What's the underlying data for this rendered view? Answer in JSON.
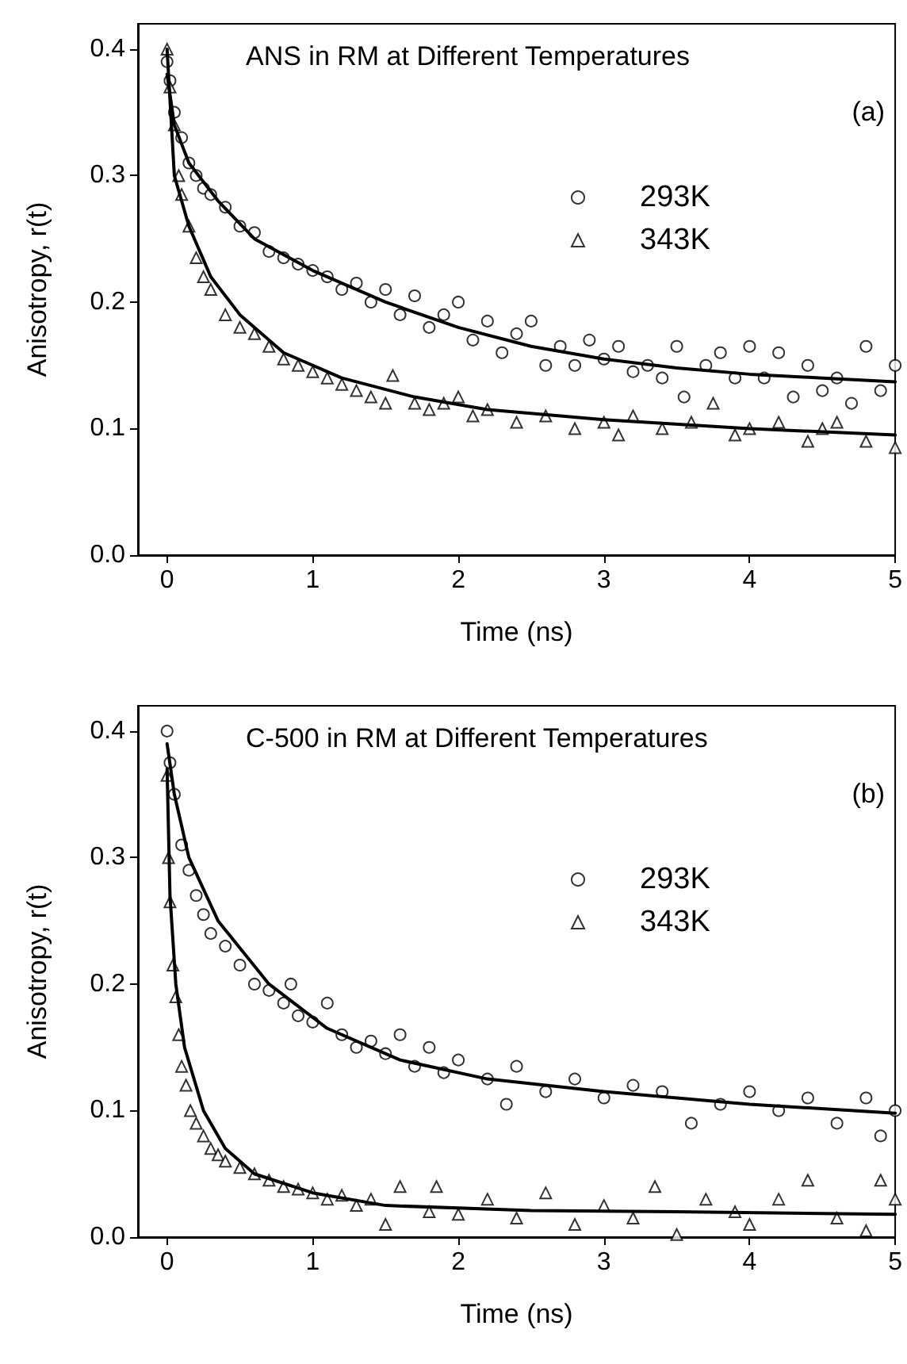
{
  "chart_data": [
    {
      "type": "scatter",
      "title": "ANS in RM at Different Temperatures",
      "xlabel": "Time (ns)",
      "ylabel": "Anisotropy, r(t)",
      "xlim": [
        -0.2,
        5
      ],
      "xticks": [
        0,
        1,
        2,
        3,
        4,
        5
      ],
      "ylim": [
        0,
        0.42
      ],
      "yticks": [
        {
          "value": 0,
          "label": "0.0"
        },
        0.1,
        0.2,
        0.3,
        0.4
      ],
      "grid": false,
      "legend": "top right",
      "annotations": [
        "(a)"
      ],
      "series": [
        {
          "name": "293K",
          "type": "scatter",
          "marker": "circle",
          "color": "#000000",
          "x": [
            0,
            0.02,
            0.05,
            0.1,
            0.15,
            0.2,
            0.25,
            0.3,
            0.4,
            0.5,
            0.6,
            0.7,
            0.8,
            0.9,
            1.0,
            1.1,
            1.2,
            1.3,
            1.4,
            1.5,
            1.6,
            1.7,
            1.8,
            1.9,
            2.0,
            2.1,
            2.2,
            2.3,
            2.4,
            2.5,
            2.6,
            2.7,
            2.8,
            2.9,
            3.0,
            3.1,
            3.2,
            3.3,
            3.4,
            3.5,
            3.55,
            3.7,
            3.8,
            3.9,
            4.0,
            4.1,
            4.2,
            4.3,
            4.4,
            4.5,
            4.6,
            4.7,
            4.8,
            4.9,
            5.0
          ],
          "values": [
            0.39,
            0.375,
            0.35,
            0.33,
            0.31,
            0.3,
            0.29,
            0.285,
            0.275,
            0.26,
            0.255,
            0.24,
            0.235,
            0.23,
            0.225,
            0.22,
            0.21,
            0.215,
            0.2,
            0.21,
            0.19,
            0.205,
            0.18,
            0.19,
            0.2,
            0.17,
            0.185,
            0.16,
            0.175,
            0.185,
            0.15,
            0.165,
            0.15,
            0.17,
            0.155,
            0.165,
            0.145,
            0.15,
            0.14,
            0.165,
            0.125,
            0.15,
            0.16,
            0.14,
            0.165,
            0.14,
            0.16,
            0.125,
            0.15,
            0.13,
            0.14,
            0.12,
            0.165,
            0.13,
            0.15
          ]
        },
        {
          "name": "343K",
          "type": "scatter",
          "marker": "triangle",
          "color": "#000000",
          "x": [
            0,
            0.02,
            0.05,
            0.08,
            0.1,
            0.15,
            0.2,
            0.25,
            0.3,
            0.4,
            0.5,
            0.6,
            0.7,
            0.8,
            0.9,
            1.0,
            1.1,
            1.2,
            1.3,
            1.4,
            1.5,
            1.55,
            1.7,
            1.8,
            1.9,
            2.0,
            2.1,
            2.2,
            2.4,
            2.6,
            2.8,
            3.0,
            3.1,
            3.2,
            3.4,
            3.6,
            3.75,
            3.9,
            4.0,
            4.2,
            4.4,
            4.5,
            4.6,
            4.8,
            5.0
          ],
          "values": [
            0.4,
            0.37,
            0.34,
            0.3,
            0.285,
            0.26,
            0.235,
            0.22,
            0.21,
            0.19,
            0.18,
            0.175,
            0.165,
            0.155,
            0.15,
            0.145,
            0.14,
            0.135,
            0.13,
            0.125,
            0.12,
            0.142,
            0.12,
            0.115,
            0.12,
            0.125,
            0.11,
            0.115,
            0.105,
            0.11,
            0.1,
            0.105,
            0.095,
            0.11,
            0.1,
            0.105,
            0.12,
            0.095,
            0.1,
            0.105,
            0.09,
            0.1,
            0.105,
            0.09,
            0.085
          ]
        },
        {
          "type": "line",
          "color": "#000000",
          "x": [
            0,
            0.05,
            0.15,
            0.35,
            0.6,
            1.0,
            1.5,
            2.0,
            2.5,
            3.0,
            3.5,
            4.0,
            4.5,
            5.0
          ],
          "values": [
            0.38,
            0.34,
            0.31,
            0.28,
            0.25,
            0.225,
            0.2,
            0.18,
            0.165,
            0.155,
            0.148,
            0.143,
            0.14,
            0.137
          ]
        },
        {
          "type": "line",
          "color": "#000000",
          "x": [
            0,
            0.05,
            0.15,
            0.3,
            0.5,
            0.8,
            1.2,
            1.7,
            2.2,
            3.0,
            4.0,
            5.0
          ],
          "values": [
            0.4,
            0.3,
            0.26,
            0.22,
            0.19,
            0.16,
            0.14,
            0.125,
            0.115,
            0.107,
            0.1,
            0.095
          ]
        }
      ]
    },
    {
      "type": "scatter",
      "title": "C-500 in RM at Different Temperatures",
      "xlabel": "Time (ns)",
      "ylabel": "Anisotropy, r(t)",
      "xlim": [
        -0.2,
        5
      ],
      "xticks": [
        0,
        1,
        2,
        3,
        4,
        5
      ],
      "ylim": [
        0,
        0.42
      ],
      "yticks": [
        {
          "value": 0,
          "label": "0.0"
        },
        0.1,
        0.2,
        0.3,
        0.4
      ],
      "grid": false,
      "legend": "top right",
      "annotations": [
        "(b)"
      ],
      "series": [
        {
          "name": "293K",
          "type": "scatter",
          "marker": "circle",
          "color": "#000000",
          "x": [
            0,
            0.02,
            0.05,
            0.1,
            0.15,
            0.2,
            0.25,
            0.3,
            0.4,
            0.5,
            0.6,
            0.7,
            0.8,
            0.85,
            0.9,
            1.0,
            1.1,
            1.2,
            1.3,
            1.4,
            1.5,
            1.6,
            1.7,
            1.8,
            1.9,
            2.0,
            2.2,
            2.33,
            2.4,
            2.6,
            2.8,
            3.0,
            3.2,
            3.4,
            3.6,
            3.8,
            4.0,
            4.2,
            4.4,
            4.6,
            4.8,
            4.9,
            5.0
          ],
          "values": [
            0.4,
            0.375,
            0.35,
            0.31,
            0.29,
            0.27,
            0.255,
            0.24,
            0.23,
            0.215,
            0.2,
            0.195,
            0.185,
            0.2,
            0.175,
            0.17,
            0.185,
            0.16,
            0.15,
            0.155,
            0.145,
            0.16,
            0.135,
            0.15,
            0.13,
            0.14,
            0.125,
            0.105,
            0.135,
            0.115,
            0.125,
            0.11,
            0.12,
            0.115,
            0.09,
            0.105,
            0.115,
            0.1,
            0.11,
            0.09,
            0.11,
            0.08,
            0.1
          ]
        },
        {
          "name": "343K",
          "type": "scatter",
          "marker": "triangle",
          "color": "#000000",
          "x": [
            0,
            0.01,
            0.02,
            0.04,
            0.06,
            0.08,
            0.1,
            0.13,
            0.16,
            0.2,
            0.25,
            0.3,
            0.35,
            0.4,
            0.5,
            0.6,
            0.7,
            0.8,
            0.9,
            1.0,
            1.1,
            1.2,
            1.3,
            1.4,
            1.5,
            1.6,
            1.8,
            1.85,
            2.0,
            2.2,
            2.4,
            2.6,
            2.8,
            3.0,
            3.2,
            3.35,
            3.5,
            3.7,
            3.9,
            4.0,
            4.2,
            4.4,
            4.6,
            4.8,
            4.9,
            5.0
          ],
          "values": [
            0.365,
            0.3,
            0.265,
            0.215,
            0.19,
            0.16,
            0.135,
            0.12,
            0.1,
            0.09,
            0.08,
            0.07,
            0.065,
            0.06,
            0.055,
            0.05,
            0.045,
            0.04,
            0.038,
            0.035,
            0.03,
            0.033,
            0.025,
            0.03,
            0.01,
            0.04,
            0.02,
            0.04,
            0.018,
            0.03,
            0.015,
            0.035,
            0.01,
            0.025,
            0.015,
            0.04,
            0.002,
            0.03,
            0.02,
            0.01,
            0.03,
            0.045,
            0.015,
            0.005,
            0.045,
            0.03
          ]
        },
        {
          "type": "line",
          "color": "#000000",
          "x": [
            0,
            0.05,
            0.15,
            0.35,
            0.7,
            1.1,
            1.6,
            2.2,
            3.0,
            4.0,
            5.0
          ],
          "values": [
            0.39,
            0.35,
            0.3,
            0.25,
            0.2,
            0.165,
            0.14,
            0.125,
            0.115,
            0.105,
            0.098
          ]
        },
        {
          "type": "line",
          "color": "#000000",
          "x": [
            0,
            0.02,
            0.06,
            0.12,
            0.25,
            0.4,
            0.6,
            1.0,
            1.5,
            2.5,
            3.5,
            5.0
          ],
          "values": [
            0.37,
            0.27,
            0.2,
            0.15,
            0.1,
            0.07,
            0.05,
            0.035,
            0.025,
            0.021,
            0.02,
            0.018
          ]
        }
      ]
    }
  ]
}
